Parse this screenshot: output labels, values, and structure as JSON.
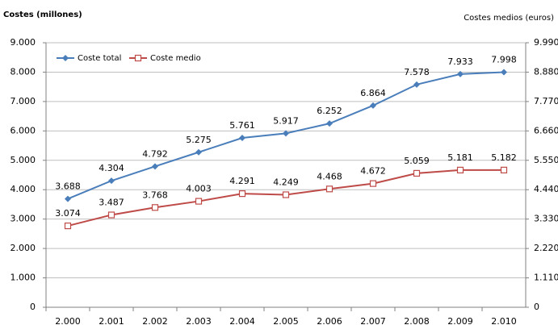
{
  "chart_data": {
    "type": "line",
    "y_label": "Costes (millones)",
    "y2_label": "Costes medios (euros)",
    "categories": [
      "2.000",
      "2.001",
      "2.002",
      "2.003",
      "2.004",
      "2.005",
      "2.006",
      "2.007",
      "2.008",
      "2.009",
      "2.010"
    ],
    "series": [
      {
        "name": "Coste total",
        "color": "#4a7ebb",
        "marker": "diamond",
        "values": [
          3688,
          4304,
          4792,
          5275,
          5761,
          5917,
          6252,
          6864,
          7578,
          7933,
          7998
        ],
        "value_labels": [
          "3.688",
          "4.304",
          "4.792",
          "5.275",
          "5.761",
          "5.917",
          "6.252",
          "6.864",
          "7.578",
          "7.933",
          "7.998"
        ]
      },
      {
        "name": "Coste medio",
        "color": "#be4b48",
        "marker": "square",
        "axis": "y2",
        "values": [
          3074,
          3487,
          3768,
          4003,
          4291,
          4249,
          4468,
          4672,
          5059,
          5181,
          5182
        ],
        "value_labels": [
          "3.074",
          "3.487",
          "3.768",
          "4.003",
          "4.291",
          "4.249",
          "4.468",
          "4.672",
          "5.059",
          "5.181",
          "5.182"
        ]
      }
    ],
    "ylim": [
      0,
      9000
    ],
    "yticks": [
      0,
      {
        "value": 1000,
        "label": "1.000"
      },
      {
        "value": 2000,
        "label": "2.000"
      },
      {
        "value": 3000,
        "label": "3.000"
      },
      {
        "value": 4000,
        "label": "4.000"
      },
      {
        "value": 5000,
        "label": "5.000"
      },
      {
        "value": 6000,
        "label": "6.000"
      },
      {
        "value": 7000,
        "label": "7.000"
      },
      {
        "value": 8000,
        "label": "8.000"
      },
      {
        "value": 9000,
        "label": "9.000"
      }
    ],
    "y2lim": [
      0,
      9990
    ],
    "y2ticks": [
      0,
      {
        "value": 1110,
        "label": "1.110"
      },
      {
        "value": 2220,
        "label": "2.220"
      },
      {
        "value": 3330,
        "label": "3.330"
      },
      {
        "value": 4440,
        "label": "4.440"
      },
      {
        "value": 5550,
        "label": "5.550"
      },
      {
        "value": 6660,
        "label": "6.660"
      },
      {
        "value": 7770,
        "label": "7.770"
      },
      {
        "value": 8880,
        "label": "8.880"
      },
      {
        "value": 9990,
        "label": "9.990"
      }
    ],
    "grid": true,
    "legend": "top-left"
  }
}
